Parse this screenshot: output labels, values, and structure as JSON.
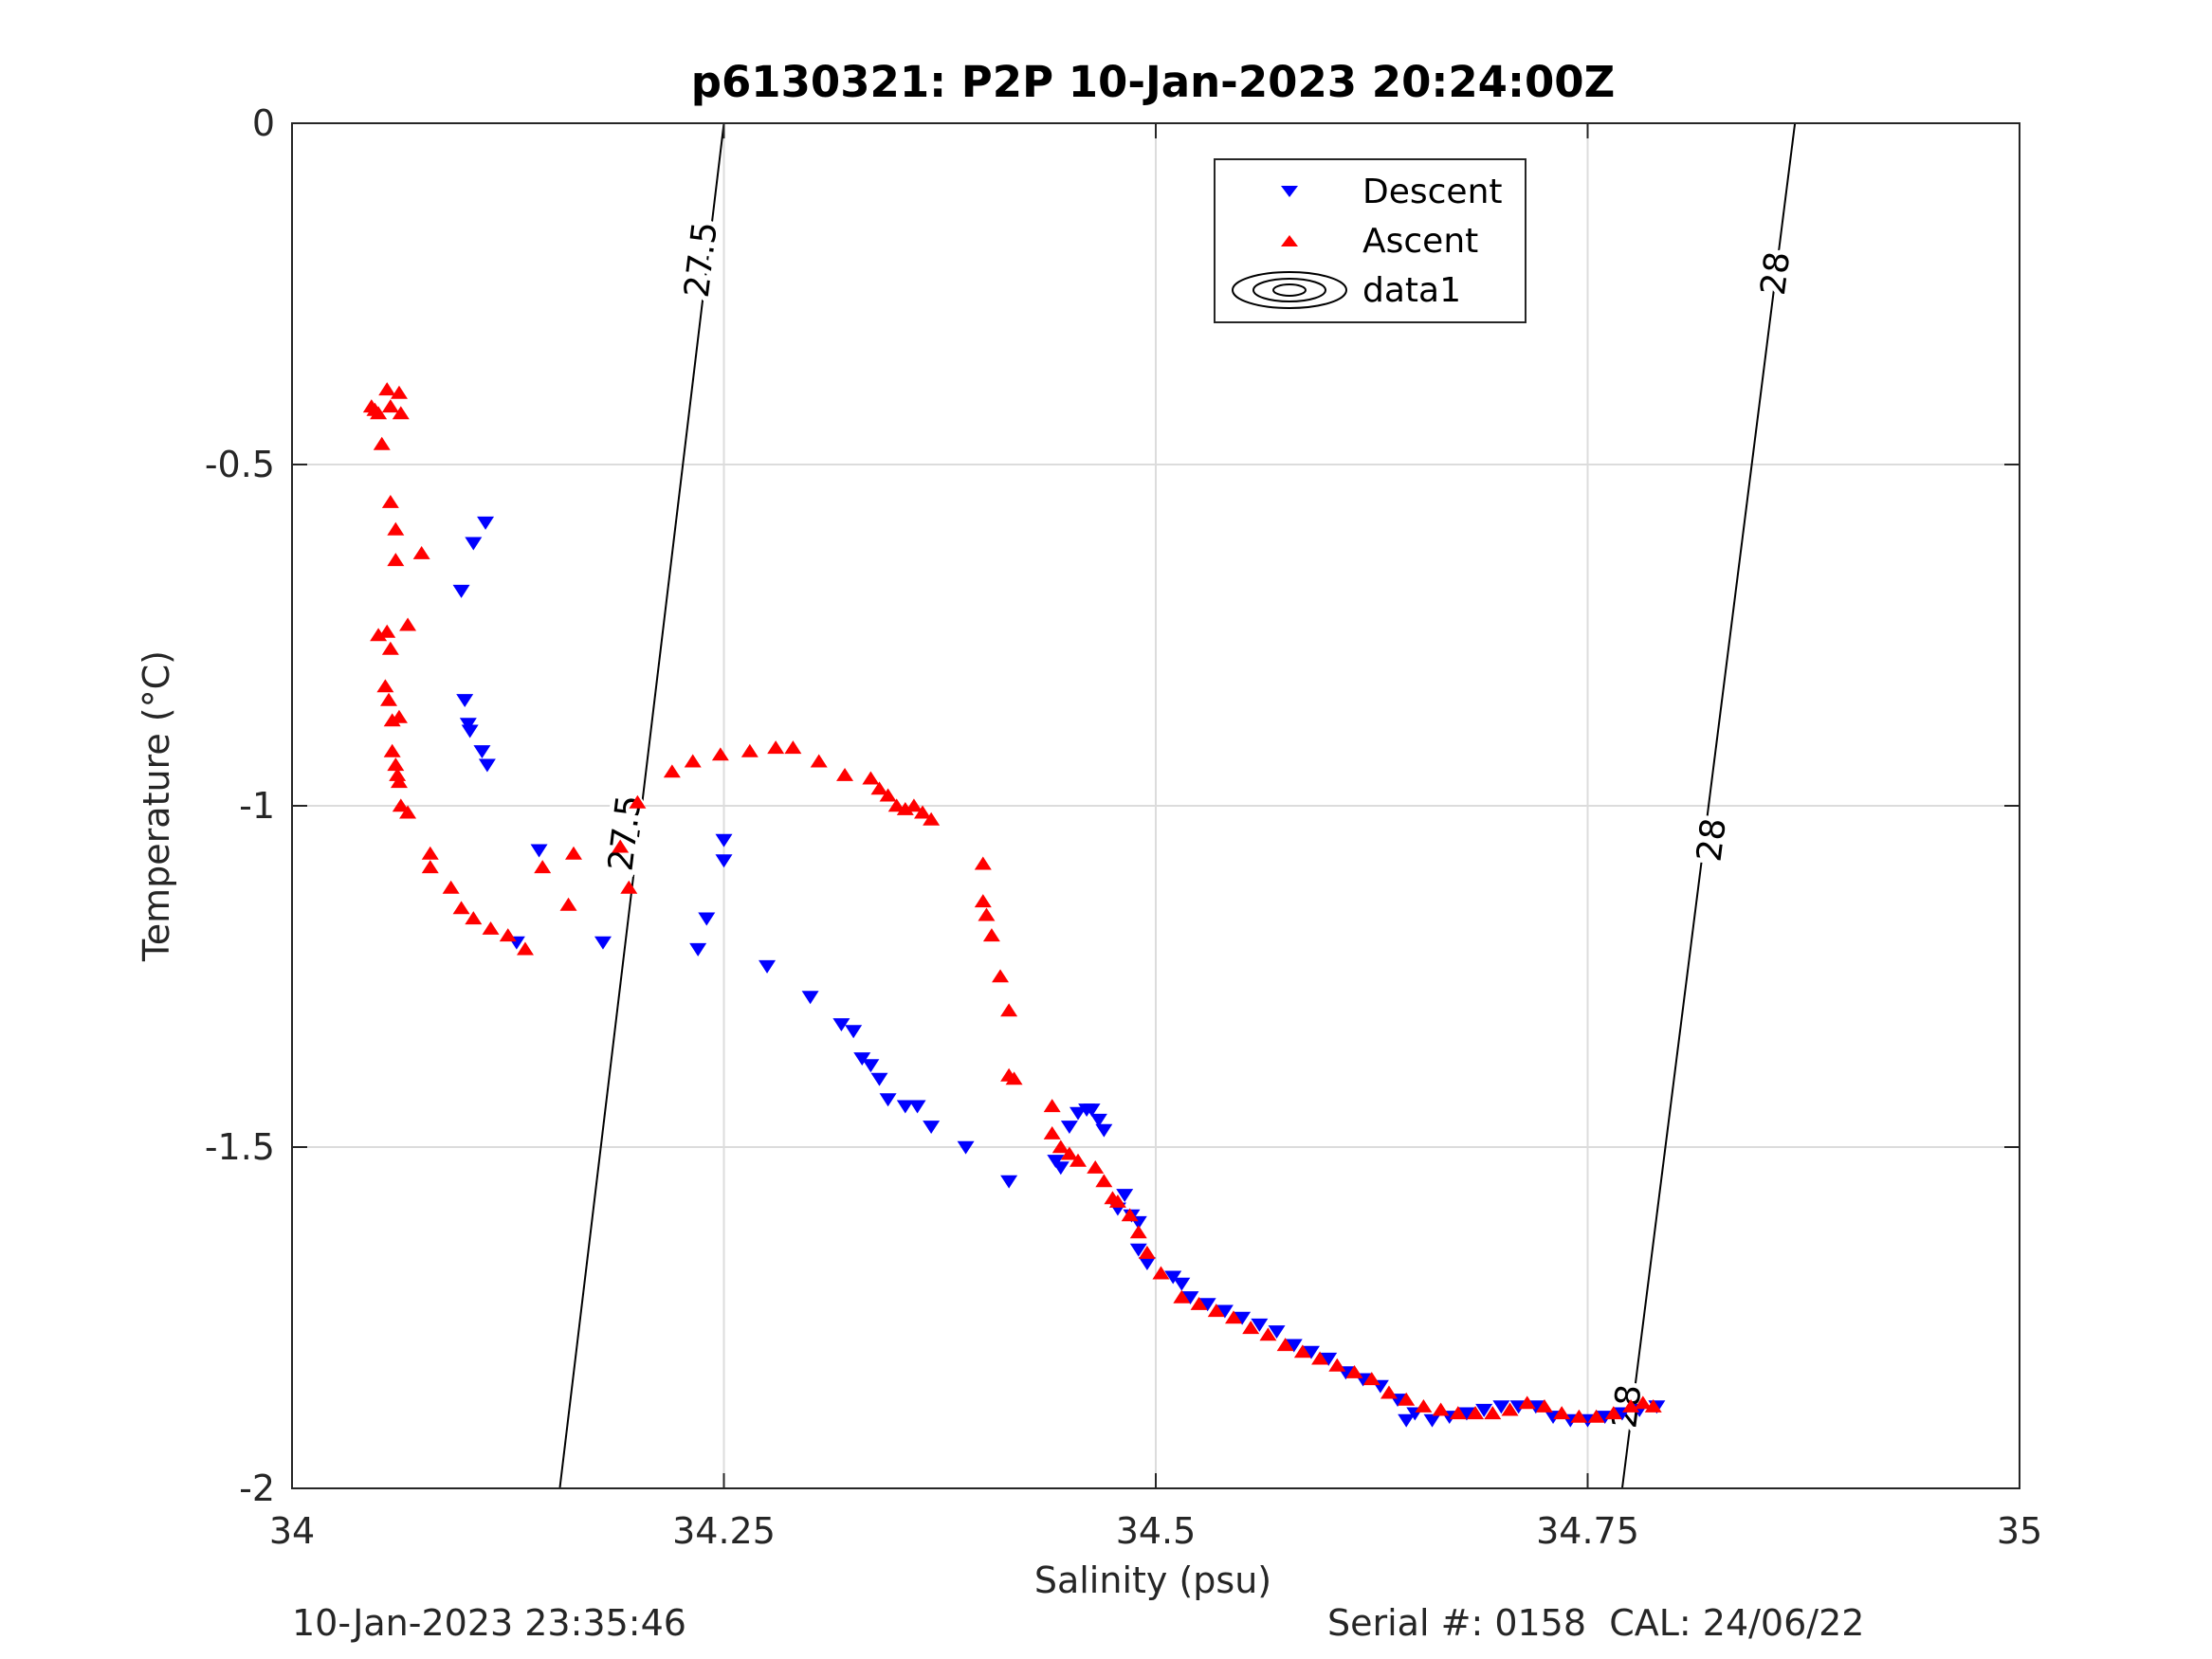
{
  "chart_data": {
    "type": "scatter",
    "title": "p6130321: P2P 10-Jan-2023 20:24:00Z",
    "xlabel": "Salinity (psu)",
    "ylabel": "Temperature (°C)",
    "xlim": [
      34,
      35
    ],
    "ylim": [
      -2,
      0
    ],
    "xticks": [
      34,
      34.25,
      34.5,
      34.75,
      35
    ],
    "xtick_labels": [
      "34",
      "34.25",
      "34.5",
      "34.75",
      "35"
    ],
    "yticks": [
      0,
      -0.5,
      -1,
      -1.5,
      -2
    ],
    "ytick_labels": [
      "0",
      "-0.5",
      "-1",
      "-1.5",
      "-2"
    ],
    "grid": true,
    "legend_position": "top-right",
    "legend": [
      "Descent",
      "Ascent",
      "data1"
    ],
    "series": [
      {
        "name": "Descent",
        "marker": "triangle-down",
        "color": "#0000ff",
        "points": [
          [
            34.112,
            -0.585
          ],
          [
            34.105,
            -0.615
          ],
          [
            34.098,
            -0.685
          ],
          [
            34.1,
            -0.845
          ],
          [
            34.102,
            -0.88
          ],
          [
            34.103,
            -0.89
          ],
          [
            34.11,
            -0.92
          ],
          [
            34.113,
            -0.94
          ],
          [
            34.143,
            -1.065
          ],
          [
            34.13,
            -1.2
          ],
          [
            34.18,
            -1.2
          ],
          [
            34.235,
            -1.21
          ],
          [
            34.24,
            -1.165
          ],
          [
            34.25,
            -1.05
          ],
          [
            34.25,
            -1.08
          ],
          [
            34.275,
            -1.235
          ],
          [
            34.3,
            -1.28
          ],
          [
            34.318,
            -1.32
          ],
          [
            34.325,
            -1.33
          ],
          [
            34.33,
            -1.37
          ],
          [
            34.335,
            -1.38
          ],
          [
            34.34,
            -1.4
          ],
          [
            34.345,
            -1.43
          ],
          [
            34.355,
            -1.44
          ],
          [
            34.362,
            -1.44
          ],
          [
            34.37,
            -1.47
          ],
          [
            34.39,
            -1.5
          ],
          [
            34.415,
            -1.55
          ],
          [
            34.442,
            -1.52
          ],
          [
            34.445,
            -1.53
          ],
          [
            34.45,
            -1.47
          ],
          [
            34.455,
            -1.45
          ],
          [
            34.46,
            -1.445
          ],
          [
            34.463,
            -1.445
          ],
          [
            34.467,
            -1.46
          ],
          [
            34.47,
            -1.475
          ],
          [
            34.478,
            -1.59
          ],
          [
            34.482,
            -1.57
          ],
          [
            34.486,
            -1.6
          ],
          [
            34.49,
            -1.61
          ],
          [
            34.49,
            -1.65
          ],
          [
            34.495,
            -1.67
          ],
          [
            34.51,
            -1.69
          ],
          [
            34.515,
            -1.7
          ],
          [
            34.52,
            -1.72
          ],
          [
            34.53,
            -1.73
          ],
          [
            34.54,
            -1.74
          ],
          [
            34.55,
            -1.75
          ],
          [
            34.56,
            -1.76
          ],
          [
            34.57,
            -1.77
          ],
          [
            34.58,
            -1.79
          ],
          [
            34.59,
            -1.8
          ],
          [
            34.6,
            -1.81
          ],
          [
            34.61,
            -1.83
          ],
          [
            34.62,
            -1.84
          ],
          [
            34.63,
            -1.85
          ],
          [
            34.64,
            -1.87
          ],
          [
            34.645,
            -1.9
          ],
          [
            34.65,
            -1.89
          ],
          [
            34.66,
            -1.9
          ],
          [
            34.67,
            -1.895
          ],
          [
            34.68,
            -1.89
          ],
          [
            34.69,
            -1.885
          ],
          [
            34.7,
            -1.88
          ],
          [
            34.71,
            -1.88
          ],
          [
            34.72,
            -1.88
          ],
          [
            34.73,
            -1.895
          ],
          [
            34.74,
            -1.9
          ],
          [
            34.75,
            -1.9
          ],
          [
            34.76,
            -1.895
          ],
          [
            34.77,
            -1.89
          ],
          [
            34.78,
            -1.885
          ],
          [
            34.79,
            -1.88
          ]
        ]
      },
      {
        "name": "Ascent",
        "marker": "triangle-up",
        "color": "#ff0000",
        "points": [
          [
            34.046,
            -0.415
          ],
          [
            34.048,
            -0.42
          ],
          [
            34.05,
            -0.425
          ],
          [
            34.055,
            -0.39
          ],
          [
            34.057,
            -0.415
          ],
          [
            34.062,
            -0.395
          ],
          [
            34.063,
            -0.425
          ],
          [
            34.052,
            -0.47
          ],
          [
            34.057,
            -0.555
          ],
          [
            34.06,
            -0.595
          ],
          [
            34.06,
            -0.64
          ],
          [
            34.075,
            -0.63
          ],
          [
            34.05,
            -0.75
          ],
          [
            34.055,
            -0.745
          ],
          [
            34.057,
            -0.77
          ],
          [
            34.067,
            -0.735
          ],
          [
            34.054,
            -0.825
          ],
          [
            34.056,
            -0.845
          ],
          [
            34.058,
            -0.875
          ],
          [
            34.062,
            -0.87
          ],
          [
            34.058,
            -0.92
          ],
          [
            34.06,
            -0.94
          ],
          [
            34.061,
            -0.955
          ],
          [
            34.062,
            -0.965
          ],
          [
            34.063,
            -1.0
          ],
          [
            34.067,
            -1.01
          ],
          [
            34.08,
            -1.07
          ],
          [
            34.08,
            -1.09
          ],
          [
            34.092,
            -1.12
          ],
          [
            34.098,
            -1.15
          ],
          [
            34.105,
            -1.165
          ],
          [
            34.115,
            -1.18
          ],
          [
            34.125,
            -1.19
          ],
          [
            34.135,
            -1.21
          ],
          [
            34.145,
            -1.09
          ],
          [
            34.163,
            -1.07
          ],
          [
            34.16,
            -1.145
          ],
          [
            34.195,
            -1.12
          ],
          [
            34.19,
            -1.06
          ],
          [
            34.2,
            -0.995
          ],
          [
            34.22,
            -0.95
          ],
          [
            34.232,
            -0.935
          ],
          [
            34.248,
            -0.925
          ],
          [
            34.265,
            -0.92
          ],
          [
            34.28,
            -0.915
          ],
          [
            34.29,
            -0.915
          ],
          [
            34.305,
            -0.935
          ],
          [
            34.32,
            -0.955
          ],
          [
            34.335,
            -0.96
          ],
          [
            34.34,
            -0.975
          ],
          [
            34.345,
            -0.985
          ],
          [
            34.35,
            -1.0
          ],
          [
            34.355,
            -1.005
          ],
          [
            34.36,
            -1.0
          ],
          [
            34.365,
            -1.01
          ],
          [
            34.37,
            -1.02
          ],
          [
            34.4,
            -1.085
          ],
          [
            34.4,
            -1.14
          ],
          [
            34.402,
            -1.16
          ],
          [
            34.405,
            -1.19
          ],
          [
            34.41,
            -1.25
          ],
          [
            34.415,
            -1.3
          ],
          [
            34.415,
            -1.395
          ],
          [
            34.418,
            -1.4
          ],
          [
            34.44,
            -1.44
          ],
          [
            34.44,
            -1.48
          ],
          [
            34.445,
            -1.5
          ],
          [
            34.45,
            -1.51
          ],
          [
            34.455,
            -1.52
          ],
          [
            34.465,
            -1.53
          ],
          [
            34.47,
            -1.55
          ],
          [
            34.475,
            -1.575
          ],
          [
            34.478,
            -1.58
          ],
          [
            34.485,
            -1.6
          ],
          [
            34.49,
            -1.625
          ],
          [
            34.495,
            -1.655
          ],
          [
            34.503,
            -1.685
          ],
          [
            34.515,
            -1.72
          ],
          [
            34.525,
            -1.73
          ],
          [
            34.535,
            -1.74
          ],
          [
            34.545,
            -1.75
          ],
          [
            34.555,
            -1.765
          ],
          [
            34.565,
            -1.775
          ],
          [
            34.575,
            -1.79
          ],
          [
            34.585,
            -1.8
          ],
          [
            34.595,
            -1.81
          ],
          [
            34.605,
            -1.82
          ],
          [
            34.615,
            -1.83
          ],
          [
            34.625,
            -1.84
          ],
          [
            34.635,
            -1.86
          ],
          [
            34.645,
            -1.87
          ],
          [
            34.655,
            -1.88
          ],
          [
            34.665,
            -1.885
          ],
          [
            34.675,
            -1.89
          ],
          [
            34.685,
            -1.89
          ],
          [
            34.695,
            -1.89
          ],
          [
            34.705,
            -1.885
          ],
          [
            34.715,
            -1.875
          ],
          [
            34.725,
            -1.88
          ],
          [
            34.735,
            -1.89
          ],
          [
            34.745,
            -1.895
          ],
          [
            34.755,
            -1.895
          ],
          [
            34.765,
            -1.89
          ],
          [
            34.775,
            -1.88
          ],
          [
            34.782,
            -1.875
          ],
          [
            34.788,
            -1.88
          ]
        ]
      },
      {
        "name": "data1",
        "type": "contour",
        "color": "#000000",
        "lines": [
          {
            "label": "27.5",
            "points": [
              [
                34.25,
                0
              ],
              [
                34.155,
                -2
              ]
            ],
            "label_positions": [
              [
                34.237,
                -0.2
              ],
              [
                34.193,
                -1.04
              ]
            ]
          },
          {
            "label": "28",
            "points": [
              [
                34.87,
                0
              ],
              [
                34.77,
                -2
              ]
            ],
            "label_positions": [
              [
                34.859,
                -0.22
              ],
              [
                34.822,
                -1.05
              ],
              [
                34.773,
                -1.88
              ]
            ]
          }
        ]
      }
    ]
  },
  "footer": {
    "left": "10-Jan-2023 23:35:46",
    "right": "Serial #: 0158  CAL: 24/06/22"
  }
}
